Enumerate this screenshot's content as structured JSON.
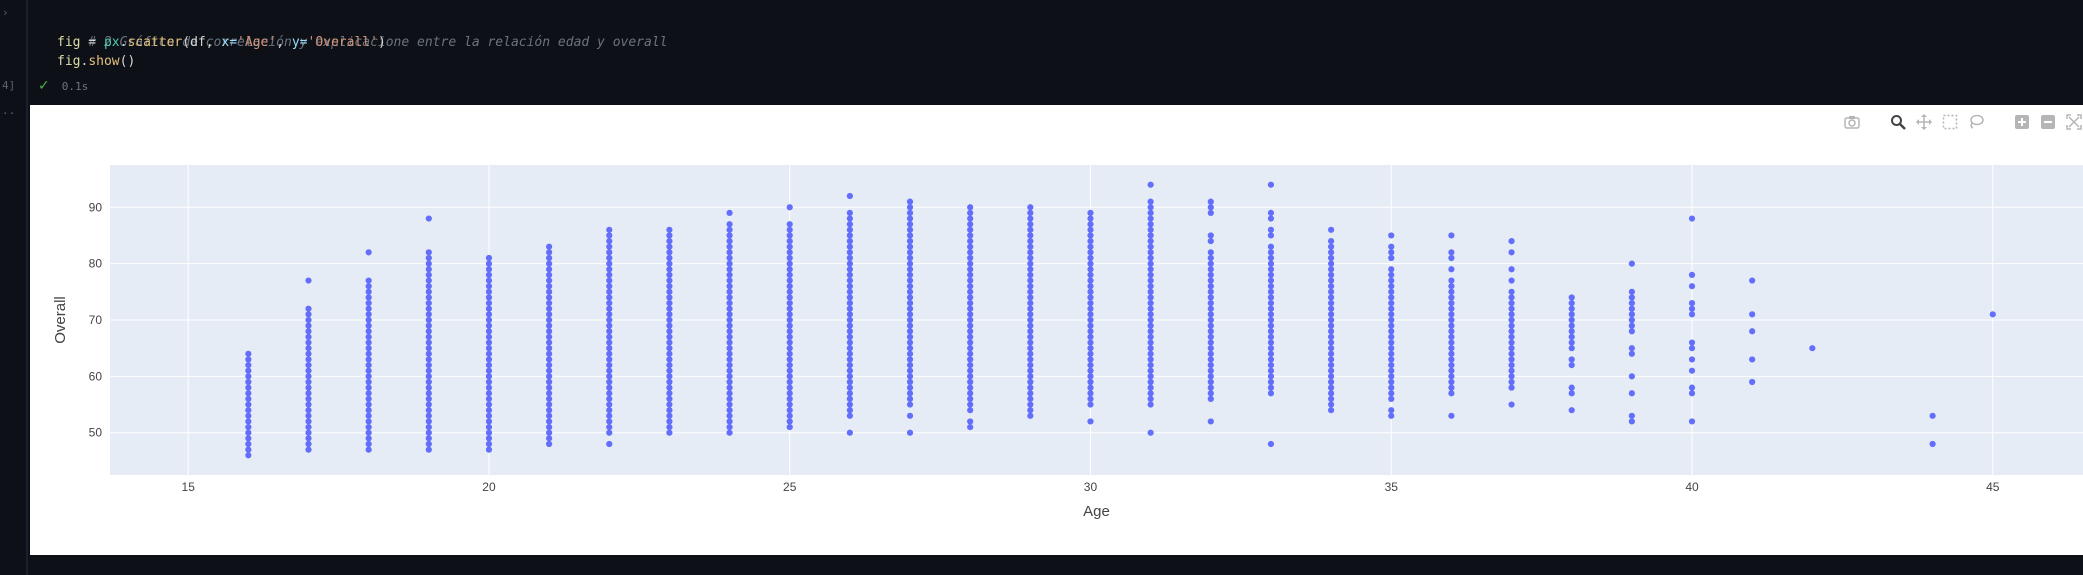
{
  "editor": {
    "gutter_marks": [
      "›",
      "4]",
      ".."
    ],
    "code": {
      "comment": "# 2 Gráfico de correlación y explicacione entre la relación edad y overall",
      "line2": {
        "var": "fig",
        "op": " = ",
        "obj": "px",
        "dot": ".",
        "fn": "scatter",
        "open": "(df, ",
        "kw1": "x=",
        "str1": "'Age'",
        "comma": ", ",
        "kw2": "y=",
        "str2": "'Overall'",
        "close": ")"
      },
      "line3": {
        "var": "fig",
        "dot": ".",
        "fn": "show",
        "paren": "()"
      }
    },
    "status": {
      "check": "✓",
      "time": "0.1s"
    }
  },
  "modebar": {
    "icons": [
      "camera-icon",
      "zoom-icon",
      "pan-icon",
      "box-select-icon",
      "lasso-select-icon",
      "zoom-in-icon",
      "zoom-out-icon",
      "autoscale-icon"
    ]
  },
  "chart_data": {
    "type": "scatter",
    "xlabel": "Age",
    "ylabel": "Overall",
    "xlim": [
      13.7,
      46.5
    ],
    "ylim": [
      42.5,
      97.5
    ],
    "xticks": [
      15,
      20,
      25,
      30,
      35,
      40,
      45
    ],
    "yticks": [
      50,
      60,
      70,
      80,
      90
    ],
    "grid": true,
    "marker_color": "#636efa",
    "plot_bgcolor": "#e5ecf6",
    "columns": [
      {
        "x": 16,
        "min": 46,
        "max": 64,
        "extra": []
      },
      {
        "x": 17,
        "min": 47,
        "max": 72,
        "extra": [
          77
        ]
      },
      {
        "x": 18,
        "min": 47,
        "max": 77,
        "extra": [
          82
        ]
      },
      {
        "x": 19,
        "min": 47,
        "max": 82,
        "extra": [
          88
        ]
      },
      {
        "x": 20,
        "min": 47,
        "max": 81,
        "extra": []
      },
      {
        "x": 21,
        "min": 48,
        "max": 83,
        "extra": []
      },
      {
        "x": 22,
        "min": 50,
        "max": 86,
        "extra": [
          48
        ]
      },
      {
        "x": 23,
        "min": 50,
        "max": 86,
        "extra": []
      },
      {
        "x": 24,
        "min": 50,
        "max": 87,
        "extra": [
          89
        ]
      },
      {
        "x": 25,
        "min": 51,
        "max": 87,
        "extra": [
          90
        ]
      },
      {
        "x": 26,
        "min": 53,
        "max": 89,
        "extra": [
          50,
          92
        ]
      },
      {
        "x": 27,
        "min": 55,
        "max": 91,
        "extra": [
          50,
          53
        ]
      },
      {
        "x": 28,
        "min": 54,
        "max": 90,
        "extra": [
          51,
          52
        ]
      },
      {
        "x": 29,
        "min": 53,
        "max": 90,
        "extra": []
      },
      {
        "x": 30,
        "min": 55,
        "max": 89,
        "extra": [
          52
        ]
      },
      {
        "x": 31,
        "min": 55,
        "max": 91,
        "extra": [
          50,
          94
        ]
      },
      {
        "x": 32,
        "min": 56,
        "max": 82,
        "extra": [
          52,
          84,
          85,
          89,
          90,
          91
        ]
      },
      {
        "x": 33,
        "min": 57,
        "max": 83,
        "extra": [
          48,
          85,
          86,
          88,
          89,
          94
        ]
      },
      {
        "x": 34,
        "min": 54,
        "max": 84,
        "extra": [
          86
        ]
      },
      {
        "x": 35,
        "min": 57,
        "max": 79,
        "extra": [
          53,
          54,
          56,
          81,
          82,
          83,
          85
        ]
      },
      {
        "x": 36,
        "min": 57,
        "max": 77,
        "extra": [
          53,
          79,
          81,
          82,
          85
        ]
      },
      {
        "x": 37,
        "min": 58,
        "max": 75,
        "extra": [
          55,
          77,
          79,
          82,
          84
        ]
      },
      {
        "x": 38,
        "min": 65,
        "max": 74,
        "extra": [
          54,
          57,
          58,
          62,
          63
        ]
      },
      {
        "x": 39,
        "min": 68,
        "max": 75,
        "extra": [
          52,
          53,
          57,
          60,
          64,
          65,
          80
        ]
      },
      {
        "x": 40,
        "min": 71,
        "max": 73,
        "extra": [
          52,
          57,
          58,
          61,
          63,
          65,
          66,
          76,
          78,
          88
        ]
      },
      {
        "x": 41,
        "min": 77,
        "max": 77,
        "extra": [
          59,
          63,
          68,
          71
        ]
      },
      {
        "x": 42,
        "min": 65,
        "max": 65,
        "extra": []
      },
      {
        "x": 44,
        "min": 48,
        "max": 48,
        "extra": [
          53
        ]
      },
      {
        "x": 45,
        "min": 71,
        "max": 71,
        "extra": []
      }
    ]
  }
}
